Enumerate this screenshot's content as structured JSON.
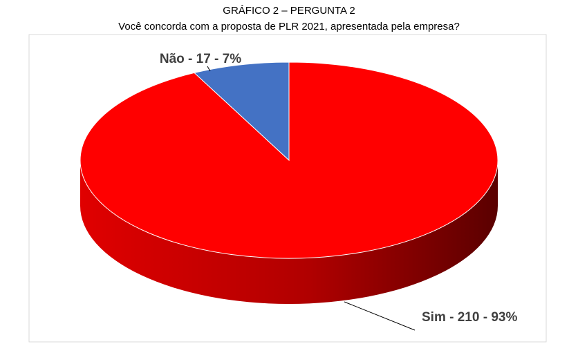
{
  "chart_data": {
    "type": "pie3d",
    "title": "GRÁFICO 2 – PERGUNTA 2",
    "subtitle": "Você concorda com a proposta de PLR 2021, apresentada pela empresa?",
    "categories": [
      "Sim",
      "Não"
    ],
    "values": [
      210,
      17
    ],
    "value_labels": [
      "Sim -  210  - 93%",
      "Não - 17 - 7%"
    ],
    "colors": [
      "#ff0000",
      "#4472c4"
    ]
  }
}
